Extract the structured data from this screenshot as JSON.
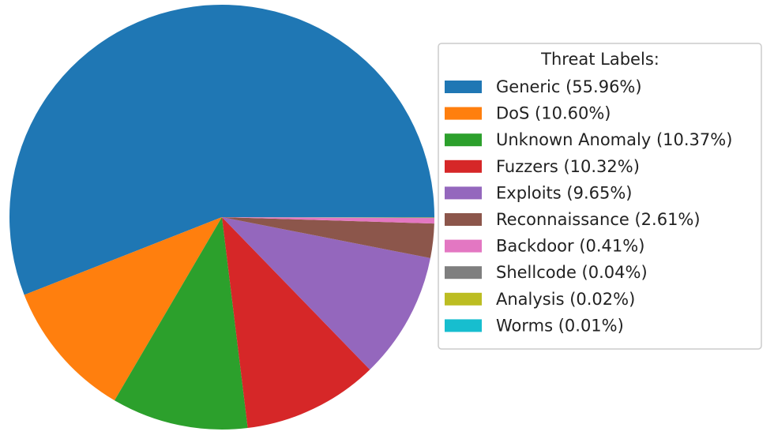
{
  "chart_data": {
    "type": "pie",
    "title": "",
    "start_angle_deg": 0,
    "direction": "counterclockwise",
    "legend": {
      "title": "Threat Labels:",
      "placement": "right"
    },
    "slices": [
      {
        "label": "Generic",
        "label_text": "Generic (55.96%)",
        "value": 55.96,
        "color": "#1f77b4"
      },
      {
        "label": "DoS",
        "label_text": "DoS (10.60%)",
        "value": 10.6,
        "color": "#ff7f0e"
      },
      {
        "label": "Unknown Anomaly",
        "label_text": "Unknown Anomaly (10.37%)",
        "value": 10.37,
        "color": "#2ca02c"
      },
      {
        "label": "Fuzzers",
        "label_text": "Fuzzers (10.32%)",
        "value": 10.32,
        "color": "#d62728"
      },
      {
        "label": "Exploits",
        "label_text": "Exploits (9.65%)",
        "value": 9.65,
        "color": "#9467bd"
      },
      {
        "label": "Reconnaissance",
        "label_text": "Reconnaissance (2.61%)",
        "value": 2.61,
        "color": "#8c564b"
      },
      {
        "label": "Backdoor",
        "label_text": "Backdoor (0.41%)",
        "value": 0.41,
        "color": "#e377c2"
      },
      {
        "label": "Shellcode",
        "label_text": "Shellcode (0.04%)",
        "value": 0.04,
        "color": "#7f7f7f"
      },
      {
        "label": "Analysis",
        "label_text": "Analysis (0.02%)",
        "value": 0.02,
        "color": "#bcbd22"
      },
      {
        "label": "Worms",
        "label_text": "Worms (0.01%)",
        "value": 0.01,
        "color": "#17becf"
      }
    ]
  }
}
